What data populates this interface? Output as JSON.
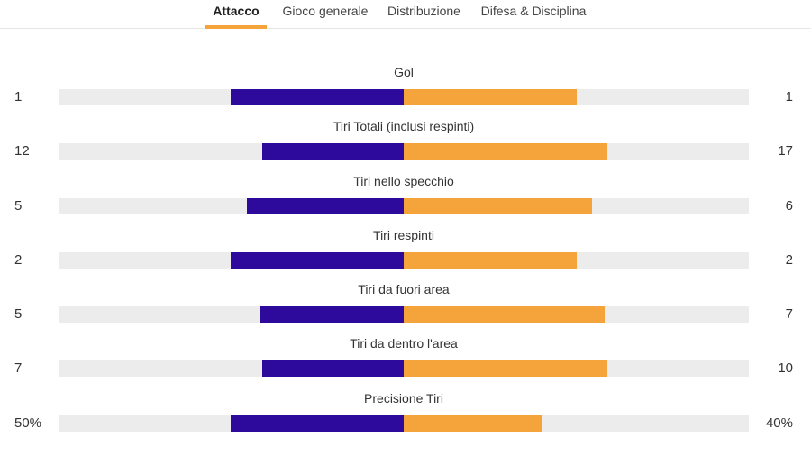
{
  "tabs": [
    {
      "label": "Attacco",
      "active": true
    },
    {
      "label": "Gioco generale",
      "active": false
    },
    {
      "label": "Distribuzione",
      "active": false
    },
    {
      "label": "Difesa & Disciplina",
      "active": false
    }
  ],
  "colors": {
    "home": "#2e0a9c",
    "away": "#f5a33b",
    "track": "#ececec"
  },
  "stats": [
    {
      "label": "Gol",
      "home": "1",
      "away": "1",
      "home_share": 0.5,
      "away_share": 0.5
    },
    {
      "label": "Tiri Totali (inclusi respinti)",
      "home": "12",
      "away": "17",
      "home_share": 0.41,
      "away_share": 0.59
    },
    {
      "label": "Tiri nello specchio",
      "home": "5",
      "away": "6",
      "home_share": 0.455,
      "away_share": 0.545
    },
    {
      "label": "Tiri respinti",
      "home": "2",
      "away": "2",
      "home_share": 0.5,
      "away_share": 0.5
    },
    {
      "label": "Tiri da fuori area",
      "home": "5",
      "away": "7",
      "home_share": 0.417,
      "away_share": 0.583
    },
    {
      "label": "Tiri da dentro l'area",
      "home": "7",
      "away": "10",
      "home_share": 0.41,
      "away_share": 0.59
    },
    {
      "label": "Precisione Tiri",
      "home": "50%",
      "away": "40%",
      "home_share": 0.5,
      "away_share": 0.4
    }
  ]
}
